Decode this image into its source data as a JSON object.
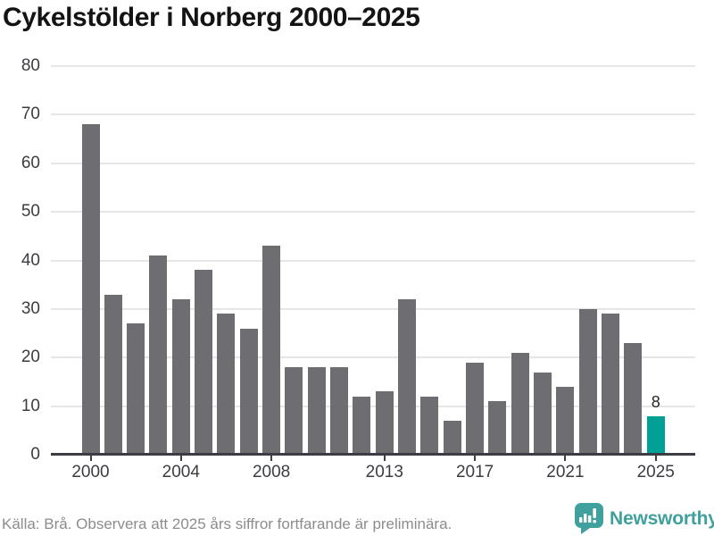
{
  "header": {
    "title": "Cykelstölder i Norberg 2000–2025"
  },
  "footer": {
    "source_note": "Källa: Brå. Observera att 2025 års siffror fortfarande är preliminära.",
    "brand_name": "Newsworthy"
  },
  "colors": {
    "bar": "#6e6d72",
    "highlight": "#00a096",
    "brand": "#3fa09d",
    "grid": "#e6e6e6",
    "axis": "#3b3d42",
    "tick_text": "#3b3d42",
    "title_text": "#141414",
    "footer_text": "#8c8c8e"
  },
  "chart_data": {
    "type": "bar",
    "title": "Cykelstölder i Norberg 2000–2025",
    "x": [
      2000,
      2001,
      2002,
      2003,
      2004,
      2005,
      2006,
      2007,
      2008,
      2009,
      2010,
      2011,
      2012,
      2013,
      2014,
      2015,
      2016,
      2017,
      2018,
      2019,
      2020,
      2021,
      2022,
      2023,
      2024,
      2025
    ],
    "values": [
      68,
      33,
      27,
      41,
      32,
      38,
      29,
      26,
      43,
      18,
      18,
      18,
      12,
      13,
      32,
      12,
      7,
      19,
      11,
      21,
      17,
      14,
      30,
      29,
      23,
      8
    ],
    "highlight_x": 2025,
    "annotations": [
      {
        "x": 2025,
        "text": "8"
      }
    ],
    "x_tick_labels": [
      "2000",
      "2004",
      "2008",
      "2013",
      "2017",
      "2021",
      "2025"
    ],
    "y_ticks": [
      0,
      10,
      20,
      30,
      40,
      50,
      60,
      70,
      80
    ],
    "ylim": [
      0,
      80
    ],
    "xlabel": "",
    "ylabel": "",
    "grid": "horizontal",
    "legend_position": "none"
  }
}
